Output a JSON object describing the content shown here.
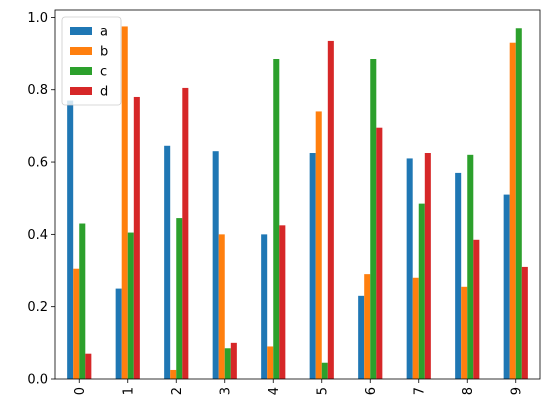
{
  "chart_data": {
    "type": "bar",
    "categories": [
      "0",
      "1",
      "2",
      "3",
      "4",
      "5",
      "6",
      "7",
      "8",
      "9"
    ],
    "series": [
      {
        "name": "a",
        "color": "#1f77b4",
        "values": [
          0.77,
          0.25,
          0.645,
          0.63,
          0.4,
          0.625,
          0.23,
          0.61,
          0.57,
          0.51
        ]
      },
      {
        "name": "b",
        "color": "#ff7f0e",
        "values": [
          0.305,
          0.975,
          0.025,
          0.4,
          0.09,
          0.74,
          0.29,
          0.28,
          0.255,
          0.93
        ]
      },
      {
        "name": "c",
        "color": "#2ca02c",
        "values": [
          0.43,
          0.405,
          0.445,
          0.085,
          0.885,
          0.045,
          0.885,
          0.485,
          0.62,
          0.97
        ]
      },
      {
        "name": "d",
        "color": "#d62728",
        "values": [
          0.07,
          0.78,
          0.805,
          0.1,
          0.425,
          0.935,
          0.695,
          0.625,
          0.385,
          0.31
        ]
      }
    ],
    "ylim": [
      0,
      1.0
    ],
    "yticks": [
      "0.0",
      "0.2",
      "0.4",
      "0.6",
      "0.8",
      "1.0"
    ],
    "xlabel": "",
    "ylabel": "",
    "title": "",
    "legend": "top-left",
    "grid": false
  }
}
